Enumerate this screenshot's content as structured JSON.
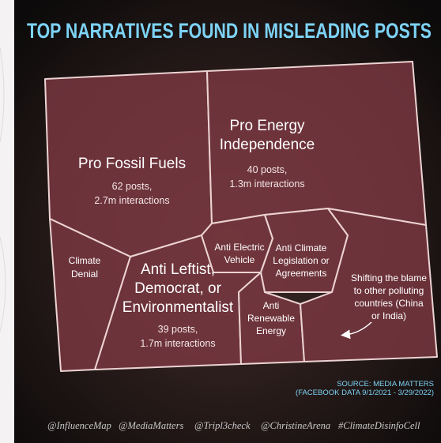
{
  "header": {
    "title": "TOP NARRATIVES FOUND IN MISLEADING POSTS"
  },
  "cells": [
    {
      "label": [
        "Pro Fossil Fuels"
      ],
      "detail": [
        "62 posts,",
        "2.7m interactions"
      ]
    },
    {
      "label": [
        "Pro Energy",
        "Independence"
      ],
      "detail": [
        "40 posts,",
        "1.3m interactions"
      ]
    },
    {
      "label": [
        "Climate",
        "Denial"
      ]
    },
    {
      "label": [
        "Anti Leftist,",
        "Democrat, or",
        "Environmentalist"
      ],
      "detail": [
        "39 posts,",
        "1.7m interactions"
      ]
    },
    {
      "label": [
        "Anti Electric",
        "Vehicle"
      ]
    },
    {
      "label": [
        "Anti Climate",
        "Legislation or",
        "Agreements"
      ]
    },
    {
      "label": [
        "Anti",
        "Renewable",
        "Energy"
      ]
    }
  ],
  "annotation": [
    "Shifting the blame",
    "to other polluting",
    "countries (China",
    "or India)"
  ],
  "source": [
    "SOURCE: MEDIA MATTERS",
    "(FACEBOOK DATA  9/1/2021 - 3/29/2022)"
  ],
  "handles": [
    "@InfluenceMap",
    "@MediaMatters",
    "@Tripl3check",
    "@ChristineArena",
    "#ClimateDisinfoCell"
  ]
}
